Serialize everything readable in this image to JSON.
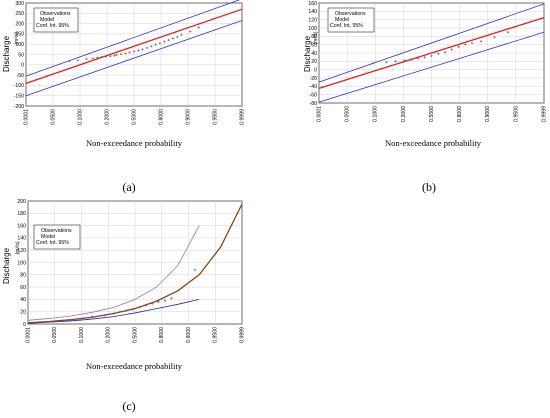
{
  "chart_data": [
    {
      "panel": "(a)",
      "type": "line",
      "xlabel": "Non-exceedance probability",
      "ylabel": "Discharge",
      "yunit": "(m³/s)",
      "xticks": [
        "0.0001",
        "0.0500",
        "0.1000",
        "0.2000",
        "0.5000",
        "0.8000",
        "0.9000",
        "0.9500",
        "0.9999"
      ],
      "yticks": [
        300,
        250,
        200,
        150,
        100,
        50,
        0,
        -50,
        -100,
        -150,
        -200
      ],
      "ylim": [
        -200,
        300
      ],
      "legend": [
        "Observations",
        "Model",
        "Conf. Int. 95%"
      ],
      "legend_position": "top-left",
      "model": [
        [
          0,
          -90
        ],
        [
          1,
          270
        ]
      ],
      "ci_upper": [
        [
          0,
          -55
        ],
        [
          1,
          320
        ]
      ],
      "ci_lower": [
        [
          0,
          -150
        ],
        [
          1,
          215
        ]
      ],
      "observations": [
        [
          0.2,
          18
        ],
        [
          0.24,
          22
        ],
        [
          0.28,
          28
        ],
        [
          0.31,
          31
        ],
        [
          0.33,
          35
        ],
        [
          0.35,
          38
        ],
        [
          0.37,
          40
        ],
        [
          0.39,
          42
        ],
        [
          0.41,
          45
        ],
        [
          0.42,
          48
        ],
        [
          0.44,
          52
        ],
        [
          0.46,
          56
        ],
        [
          0.48,
          60
        ],
        [
          0.5,
          65
        ],
        [
          0.52,
          70
        ],
        [
          0.54,
          75
        ],
        [
          0.56,
          82
        ],
        [
          0.58,
          90
        ],
        [
          0.6,
          98
        ],
        [
          0.62,
          105
        ],
        [
          0.64,
          112
        ],
        [
          0.66,
          120
        ],
        [
          0.68,
          128
        ],
        [
          0.7,
          135
        ],
        [
          0.72,
          145
        ],
        [
          0.76,
          162
        ],
        [
          0.8,
          182
        ]
      ]
    },
    {
      "panel": "(b)",
      "type": "line",
      "xlabel": "Non-exceedance probability",
      "ylabel": "Discharge",
      "yunit": "(m³/s)",
      "xticks": [
        "0.0001",
        "0.0500",
        "0.1000",
        "0.2000",
        "0.5000",
        "0.8000",
        "0.9000",
        "0.9500",
        "0.9999"
      ],
      "yticks": [
        160,
        140,
        120,
        100,
        80,
        60,
        40,
        20,
        0,
        -20,
        -40,
        -60,
        -80
      ],
      "ylim": [
        -80,
        160
      ],
      "legend": [
        "Observations",
        "Model",
        "Conf. Int. 95%"
      ],
      "legend_position": "top-left",
      "model": [
        [
          0,
          -45
        ],
        [
          1,
          125
        ]
      ],
      "ci_upper": [
        [
          0,
          -30
        ],
        [
          1,
          158
        ]
      ],
      "ci_lower": [
        [
          0,
          -78
        ],
        [
          1,
          90
        ]
      ],
      "observations": [
        [
          0.24,
          15
        ],
        [
          0.3,
          18
        ],
        [
          0.34,
          20
        ],
        [
          0.38,
          22
        ],
        [
          0.41,
          24
        ],
        [
          0.44,
          27
        ],
        [
          0.47,
          30
        ],
        [
          0.5,
          33
        ],
        [
          0.53,
          38
        ],
        [
          0.56,
          42
        ],
        [
          0.59,
          48
        ],
        [
          0.62,
          55
        ],
        [
          0.65,
          60
        ],
        [
          0.68,
          64
        ],
        [
          0.72,
          68
        ],
        [
          0.78,
          78
        ],
        [
          0.84,
          90
        ]
      ]
    },
    {
      "panel": "(c)",
      "type": "line",
      "xlabel": "Non-exceedance probability",
      "ylabel": "Discharge",
      "yunit": "(m³/s)",
      "xticks": [
        "0.0001",
        "0.0500",
        "0.1000",
        "0.2000",
        "0.5000",
        "0.8000",
        "0.9000",
        "0.9500",
        "0.9999"
      ],
      "yticks": [
        200,
        180,
        160,
        140,
        120,
        100,
        80,
        60,
        40,
        20,
        0
      ],
      "ylim": [
        0,
        200
      ],
      "legend": [
        "Observations",
        "Model",
        "Conf. Int. 95%"
      ],
      "legend_position": "top-left",
      "model": [
        [
          0,
          2
        ],
        [
          0.1,
          4
        ],
        [
          0.2,
          7
        ],
        [
          0.3,
          11
        ],
        [
          0.4,
          17
        ],
        [
          0.5,
          25
        ],
        [
          0.6,
          37
        ],
        [
          0.7,
          54
        ],
        [
          0.8,
          80
        ],
        [
          0.9,
          125
        ],
        [
          1,
          195
        ]
      ],
      "ci_upper": [
        [
          0,
          6
        ],
        [
          0.1,
          9
        ],
        [
          0.2,
          13
        ],
        [
          0.3,
          19
        ],
        [
          0.4,
          27
        ],
        [
          0.5,
          40
        ],
        [
          0.6,
          60
        ],
        [
          0.7,
          95
        ],
        [
          0.8,
          160
        ]
      ],
      "ci_lower": [
        [
          0,
          1
        ],
        [
          0.1,
          3
        ],
        [
          0.2,
          5
        ],
        [
          0.3,
          8
        ],
        [
          0.4,
          12
        ],
        [
          0.5,
          18
        ],
        [
          0.6,
          25
        ],
        [
          0.7,
          32
        ],
        [
          0.8,
          40
        ]
      ],
      "observations": [
        [
          0.3,
          12
        ],
        [
          0.36,
          14
        ],
        [
          0.4,
          17
        ],
        [
          0.43,
          20
        ],
        [
          0.46,
          22
        ],
        [
          0.49,
          24
        ],
        [
          0.52,
          27
        ],
        [
          0.55,
          30
        ],
        [
          0.58,
          33
        ],
        [
          0.61,
          36
        ],
        [
          0.64,
          38
        ],
        [
          0.67,
          42
        ],
        [
          0.78,
          88
        ]
      ]
    }
  ],
  "captions": [
    "(a)",
    "(b)",
    "(c)"
  ],
  "colors": {
    "observations": "#555555",
    "model": "#e02020",
    "ci": "#3030d0",
    "model_c": "#8b4513",
    "ci_upper_c": "#9370db",
    "ci_lower_c": "#2020c0",
    "grid": "#c8c8c8"
  }
}
